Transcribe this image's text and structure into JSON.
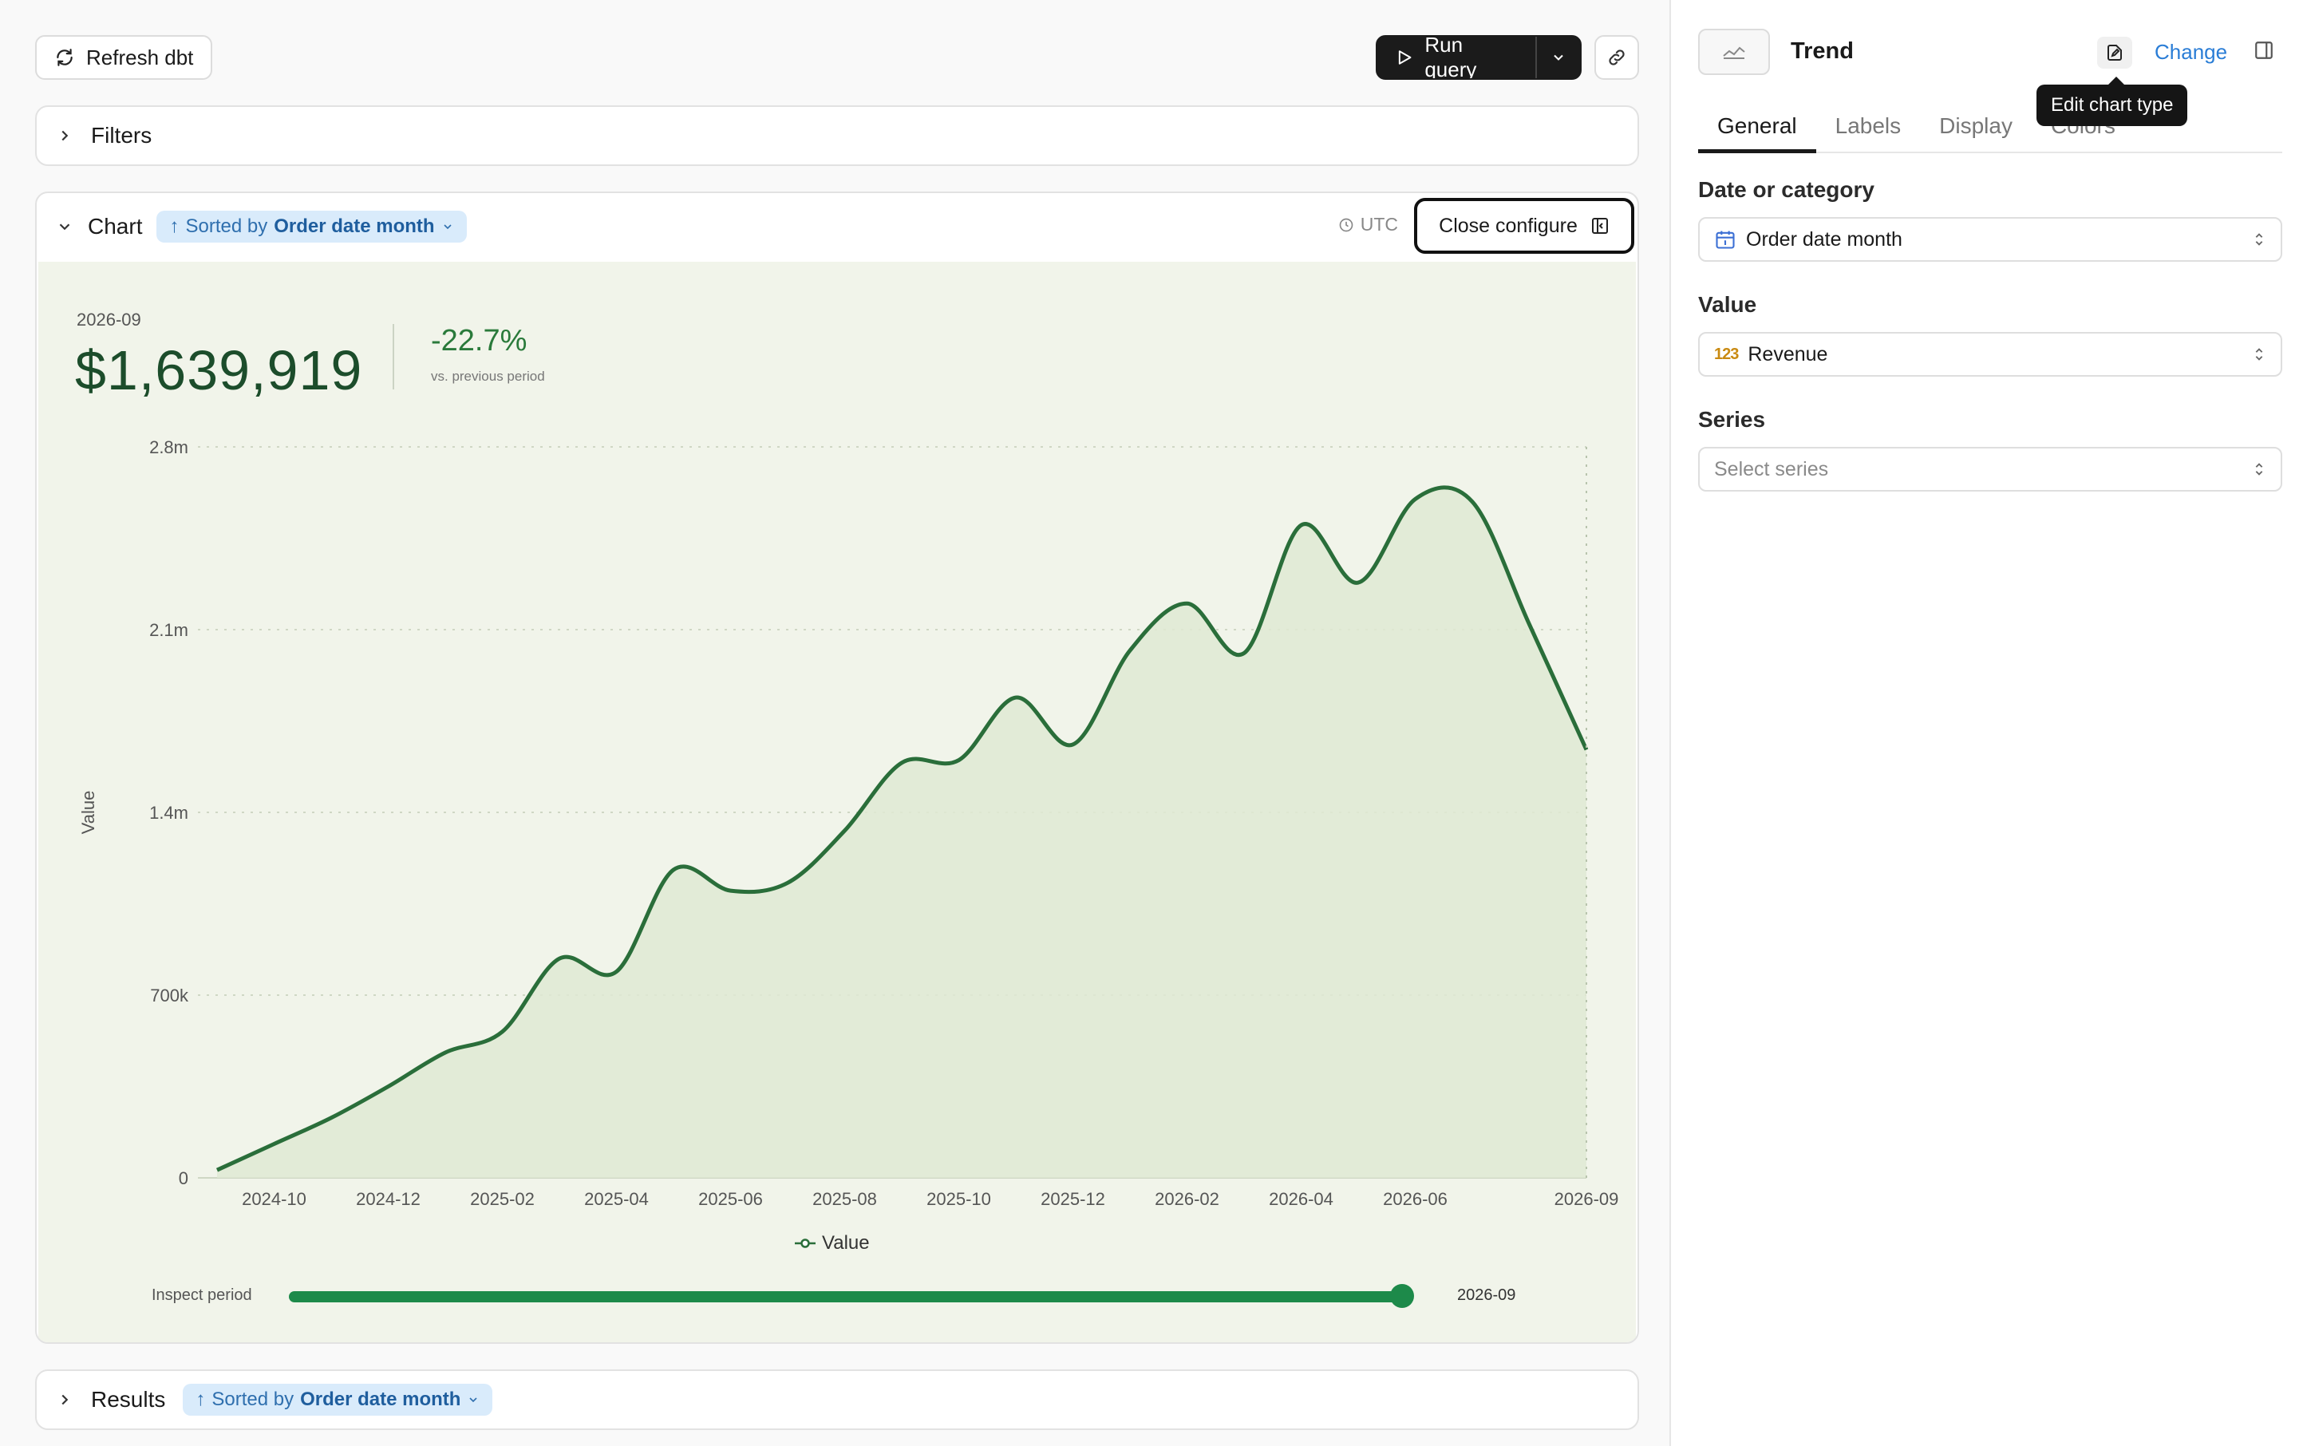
{
  "toolbar": {
    "refresh_label": "Refresh dbt",
    "run_label": "Run query"
  },
  "filters": {
    "label": "Filters"
  },
  "chart_section": {
    "label": "Chart",
    "sort_prefix": "Sorted by",
    "sort_field": "Order date month",
    "timezone": "UTC",
    "close_configure_label": "Close configure"
  },
  "kpi": {
    "period": "2026-09",
    "value": "$1,639,919",
    "delta": "-22.7%",
    "delta_caption": "vs. previous period"
  },
  "chart_data": {
    "type": "area",
    "ylabel": "Value",
    "ylim": [
      0,
      2800000
    ],
    "yticks": [
      "0",
      "700k",
      "1.4m",
      "2.1m",
      "2.8m"
    ],
    "ytick_values": [
      0,
      700000,
      1400000,
      2100000,
      2800000
    ],
    "xtick_labels": [
      "2024-10",
      "2024-12",
      "2025-02",
      "2025-04",
      "2025-06",
      "2025-08",
      "2025-10",
      "2025-12",
      "2026-02",
      "2026-04",
      "2026-06",
      "2026-09"
    ],
    "x": [
      "2024-09",
      "2024-10",
      "2024-11",
      "2024-12",
      "2025-01",
      "2025-02",
      "2025-03",
      "2025-04",
      "2025-05",
      "2025-06",
      "2025-07",
      "2025-08",
      "2025-09",
      "2025-10",
      "2025-11",
      "2025-12",
      "2026-01",
      "2026-02",
      "2026-03",
      "2026-04",
      "2026-05",
      "2026-06",
      "2026-07",
      "2026-08",
      "2026-09"
    ],
    "series": [
      {
        "name": "Value",
        "color": "#2a6e3a",
        "values": [
          30000,
          130000,
          230000,
          350000,
          480000,
          560000,
          840000,
          790000,
          1180000,
          1100000,
          1130000,
          1330000,
          1590000,
          1600000,
          1840000,
          1660000,
          2020000,
          2200000,
          2010000,
          2500000,
          2280000,
          2600000,
          2590000,
          2120000,
          1639919
        ]
      }
    ],
    "legend": "bottom-center",
    "grid": true
  },
  "inspect": {
    "label": "Inspect period",
    "value": "2026-09",
    "position": 1.0
  },
  "results": {
    "label": "Results",
    "sort_prefix": "Sorted by",
    "sort_field": "Order date month"
  },
  "config_panel": {
    "chart_type": "Trend",
    "change_label": "Change",
    "tooltip": "Edit chart type",
    "tabs": [
      "General",
      "Labels",
      "Display",
      "Colors"
    ],
    "active_tab": "General",
    "fields": {
      "date_label": "Date or category",
      "date_value": "Order date month",
      "value_label": "Value",
      "value_value": "Revenue",
      "value_icon_text": "123",
      "series_label": "Series",
      "series_placeholder": "Select series"
    }
  }
}
